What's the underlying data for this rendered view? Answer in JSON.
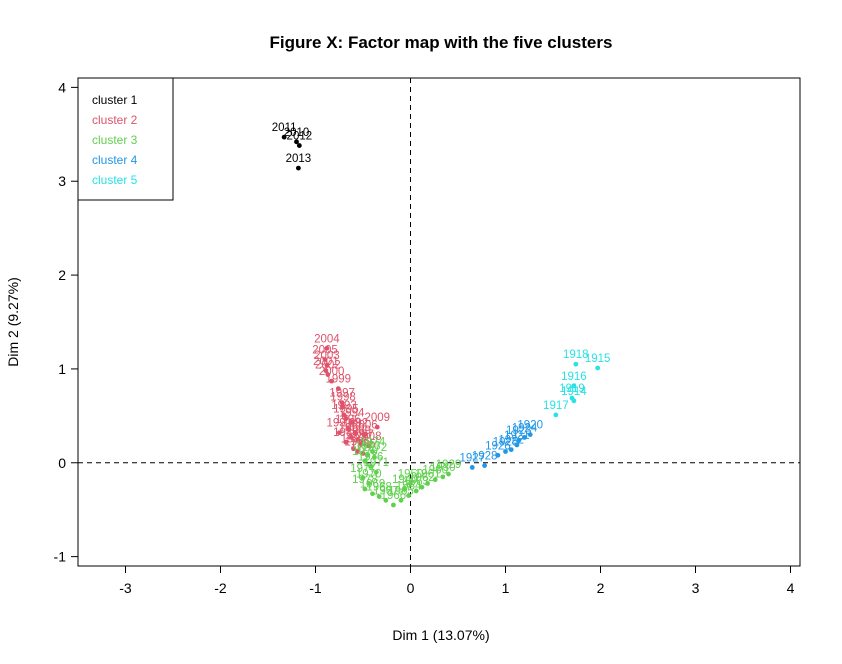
{
  "chart_data": {
    "type": "scatter",
    "title": "Figure X: Factor map with the five clusters",
    "xlabel": "Dim 1 (13.07%)",
    "ylabel": "Dim 2 (9.27%)",
    "xlim": [
      -3.5,
      4.1
    ],
    "ylim": [
      -1.1,
      4.1
    ],
    "x_ticks": [
      -3,
      -2,
      -1,
      0,
      1,
      2,
      3,
      4
    ],
    "y_ticks": [
      -1,
      0,
      1,
      2,
      3,
      4
    ],
    "reference_lines": {
      "x": 0,
      "y": 0,
      "style": "dashed"
    },
    "grid": false,
    "legend": {
      "position": "top-left"
    },
    "series": [
      {
        "name": "cluster 1",
        "color": "#000000",
        "points": [
          {
            "x": -1.33,
            "y": 3.47,
            "label": "2011"
          },
          {
            "x": -1.2,
            "y": 3.42,
            "label": "2010"
          },
          {
            "x": -1.17,
            "y": 3.38,
            "label": "2012"
          },
          {
            "x": -1.18,
            "y": 3.14,
            "label": "2013"
          }
        ]
      },
      {
        "name": "cluster 2",
        "color": "#DF536B",
        "points": [
          {
            "x": -0.88,
            "y": 1.22,
            "label": "2004"
          },
          {
            "x": -0.9,
            "y": 1.1,
            "label": "2005"
          },
          {
            "x": -0.88,
            "y": 1.04,
            "label": "2003"
          },
          {
            "x": -0.89,
            "y": 0.98,
            "label": "2001"
          },
          {
            "x": -0.87,
            "y": 0.94,
            "label": "2002"
          },
          {
            "x": -0.83,
            "y": 0.87,
            "label": "2000"
          },
          {
            "x": -0.76,
            "y": 0.79,
            "label": "1999"
          },
          {
            "x": -0.72,
            "y": 0.64,
            "label": "1997"
          },
          {
            "x": -0.71,
            "y": 0.6,
            "label": "1998"
          },
          {
            "x": -0.7,
            "y": 0.51,
            "label": "1993"
          },
          {
            "x": -0.68,
            "y": 0.47,
            "label": "1995"
          },
          {
            "x": -0.62,
            "y": 0.43,
            "label": "1994"
          },
          {
            "x": -0.66,
            "y": 0.36,
            "label": "1996"
          },
          {
            "x": -0.35,
            "y": 0.38,
            "label": "2009"
          },
          {
            "x": -0.75,
            "y": 0.32,
            "label": "1991"
          },
          {
            "x": -0.58,
            "y": 0.32,
            "label": "1992"
          },
          {
            "x": -0.48,
            "y": 0.3,
            "label": "2006"
          },
          {
            "x": -0.62,
            "y": 0.27,
            "label": "1990"
          },
          {
            "x": -0.55,
            "y": 0.24,
            "label": "1989"
          },
          {
            "x": -0.68,
            "y": 0.22,
            "label": "1988"
          },
          {
            "x": -0.52,
            "y": 0.2,
            "label": "2007"
          },
          {
            "x": -0.44,
            "y": 0.18,
            "label": "2008"
          },
          {
            "x": -0.6,
            "y": 0.15,
            "label": "1987"
          },
          {
            "x": -0.56,
            "y": 0.12,
            "label": "1986"
          },
          {
            "x": -0.5,
            "y": 0.1,
            "label": "1985"
          }
        ]
      },
      {
        "name": "cluster 3",
        "color": "#61D04F",
        "points": [
          {
            "x": -0.4,
            "y": 0.12,
            "label": "1974"
          },
          {
            "x": -0.45,
            "y": 0.08,
            "label": "1973"
          },
          {
            "x": -0.38,
            "y": 0.06,
            "label": "1972"
          },
          {
            "x": -0.48,
            "y": 0.02,
            "label": "1975"
          },
          {
            "x": -0.42,
            "y": -0.04,
            "label": "1976"
          },
          {
            "x": -0.36,
            "y": -0.1,
            "label": "1971"
          },
          {
            "x": -0.5,
            "y": -0.16,
            "label": "1977"
          },
          {
            "x": -0.44,
            "y": -0.22,
            "label": "1970"
          },
          {
            "x": -0.48,
            "y": -0.28,
            "label": "1978"
          },
          {
            "x": -0.4,
            "y": -0.33,
            "label": "1969"
          },
          {
            "x": -0.33,
            "y": -0.36,
            "label": "1968"
          },
          {
            "x": -0.26,
            "y": -0.4,
            "label": "1967"
          },
          {
            "x": -0.18,
            "y": -0.45,
            "label": "1966"
          },
          {
            "x": -0.1,
            "y": -0.4,
            "label": "1965"
          },
          {
            "x": -0.02,
            "y": -0.35,
            "label": "1964"
          },
          {
            "x": 0.06,
            "y": -0.3,
            "label": "1963"
          },
          {
            "x": 0.12,
            "y": -0.26,
            "label": "1962"
          },
          {
            "x": 0.18,
            "y": -0.22,
            "label": "1961"
          },
          {
            "x": 0.26,
            "y": -0.18,
            "label": "1960"
          },
          {
            "x": 0.34,
            "y": -0.15,
            "label": "1930"
          },
          {
            "x": 0.4,
            "y": -0.12,
            "label": "1929"
          },
          {
            "x": -0.06,
            "y": -0.28,
            "label": "1940"
          },
          {
            "x": 0.0,
            "y": -0.22,
            "label": "1950"
          }
        ]
      },
      {
        "name": "cluster 4",
        "color": "#2297E6",
        "points": [
          {
            "x": 0.65,
            "y": -0.05,
            "label": "1927"
          },
          {
            "x": 0.78,
            "y": -0.03,
            "label": "1928"
          },
          {
            "x": 0.92,
            "y": 0.08,
            "label": "1926"
          },
          {
            "x": 1.0,
            "y": 0.12,
            "label": "1925"
          },
          {
            "x": 1.06,
            "y": 0.14,
            "label": "1922"
          },
          {
            "x": 1.12,
            "y": 0.19,
            "label": "1921"
          },
          {
            "x": 1.14,
            "y": 0.24,
            "label": "1923"
          },
          {
            "x": 1.2,
            "y": 0.27,
            "label": "1924"
          },
          {
            "x": 1.26,
            "y": 0.3,
            "label": "1920"
          }
        ]
      },
      {
        "name": "cluster 5",
        "color": "#28E2E5",
        "points": [
          {
            "x": 1.74,
            "y": 1.05,
            "label": "1918"
          },
          {
            "x": 1.97,
            "y": 1.01,
            "label": "1915"
          },
          {
            "x": 1.72,
            "y": 0.82,
            "label": "1916"
          },
          {
            "x": 1.7,
            "y": 0.69,
            "label": "1919"
          },
          {
            "x": 1.72,
            "y": 0.66,
            "label": "1914"
          },
          {
            "x": 1.53,
            "y": 0.51,
            "label": "1917"
          }
        ]
      }
    ]
  }
}
